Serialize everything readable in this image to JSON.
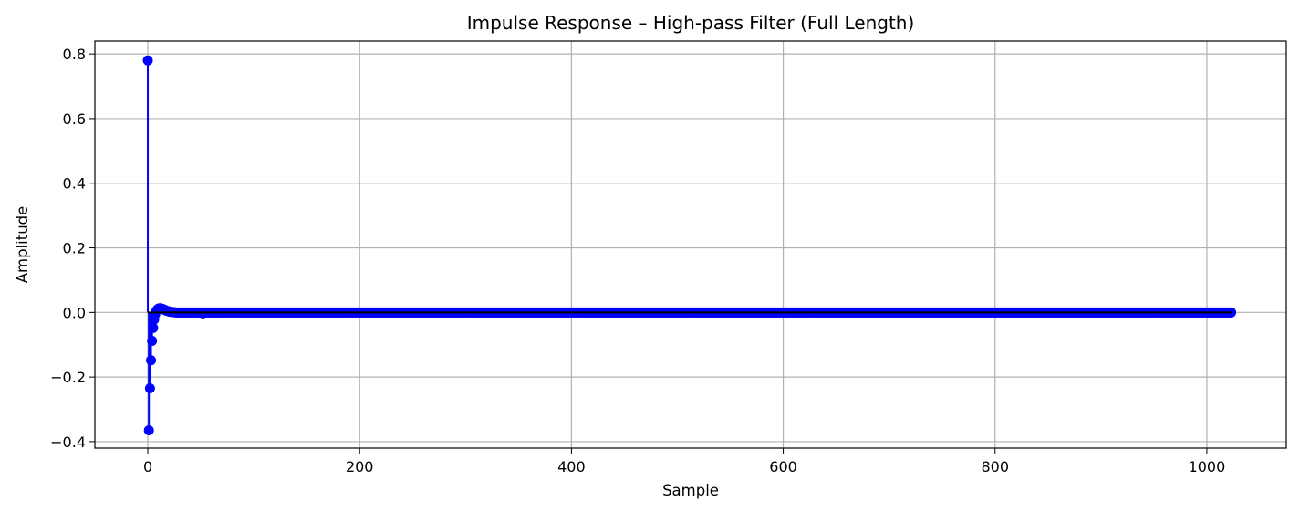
{
  "chart_data": {
    "type": "stem",
    "title": "Impulse Response – High-pass Filter (Full Length)",
    "xlabel": "Sample",
    "ylabel": "Amplitude",
    "xlim": [
      -50,
      1075
    ],
    "ylim": [
      -0.42,
      0.84
    ],
    "x_ticks": [
      0,
      200,
      400,
      600,
      800,
      1000
    ],
    "x_tick_labels": [
      "0",
      "200",
      "400",
      "600",
      "800",
      "1000"
    ],
    "y_ticks": [
      -0.4,
      -0.2,
      0.0,
      0.2,
      0.4,
      0.6,
      0.8
    ],
    "y_tick_labels": [
      "−0.4",
      "−0.2",
      "0.0",
      "0.2",
      "0.4",
      "0.6",
      "0.8"
    ],
    "grid": true,
    "n_samples": 1024,
    "leading_values": [
      [
        0,
        0.78
      ],
      [
        1,
        -0.365
      ],
      [
        2,
        -0.235
      ],
      [
        3,
        -0.148
      ],
      [
        4,
        -0.088
      ],
      [
        5,
        -0.048
      ],
      [
        6,
        -0.022
      ],
      [
        7,
        -0.006
      ],
      [
        8,
        0.004
      ],
      [
        9,
        0.009
      ],
      [
        10,
        0.012
      ],
      [
        11,
        0.013
      ],
      [
        12,
        0.013
      ],
      [
        13,
        0.012
      ],
      [
        14,
        0.011
      ],
      [
        15,
        0.009
      ],
      [
        16,
        0.008
      ],
      [
        17,
        0.006
      ],
      [
        18,
        0.005
      ],
      [
        19,
        0.004
      ],
      [
        20,
        0.003
      ],
      [
        21,
        0.002
      ],
      [
        22,
        0.002
      ],
      [
        23,
        0.001
      ],
      [
        24,
        0.001
      ],
      [
        25,
        0.001
      ],
      [
        52,
        -0.003
      ]
    ],
    "tail_value": 0.0,
    "stem_color": "#0000ff",
    "marker_color": "#0000ff",
    "baseline_color": "#000000"
  }
}
